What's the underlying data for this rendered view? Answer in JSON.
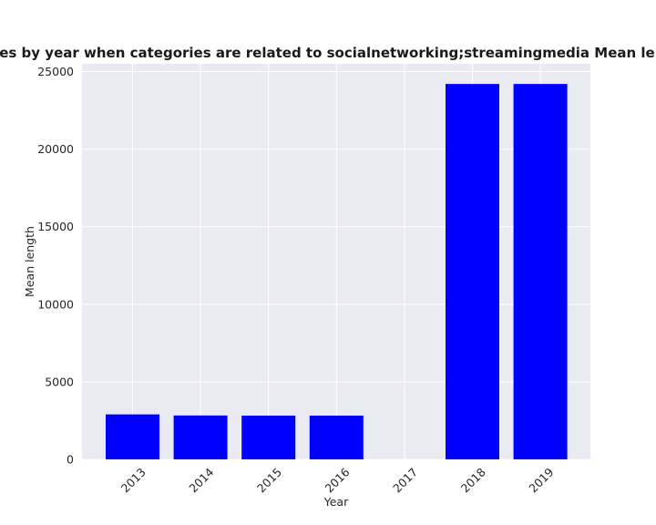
{
  "chart_data": {
    "type": "bar",
    "title": "Mean length of privacy policies by year when categories are related to socialnetworking;streamingmedia Mean length in privacy policies by year",
    "xlabel": "Year",
    "ylabel": "Mean length",
    "categories": [
      "2013",
      "2014",
      "2015",
      "2016",
      "2017",
      "2018",
      "2019"
    ],
    "values": [
      2900,
      2830,
      2820,
      2820,
      0,
      24200,
      24200
    ],
    "ylim": [
      0,
      25500
    ],
    "yticks": [
      0,
      5000,
      10000,
      15000,
      20000,
      25000
    ],
    "grid": true,
    "colors": {
      "bar": "#0000ff",
      "plot_background": "#eaeaf2",
      "grid": "#ffffff"
    }
  }
}
